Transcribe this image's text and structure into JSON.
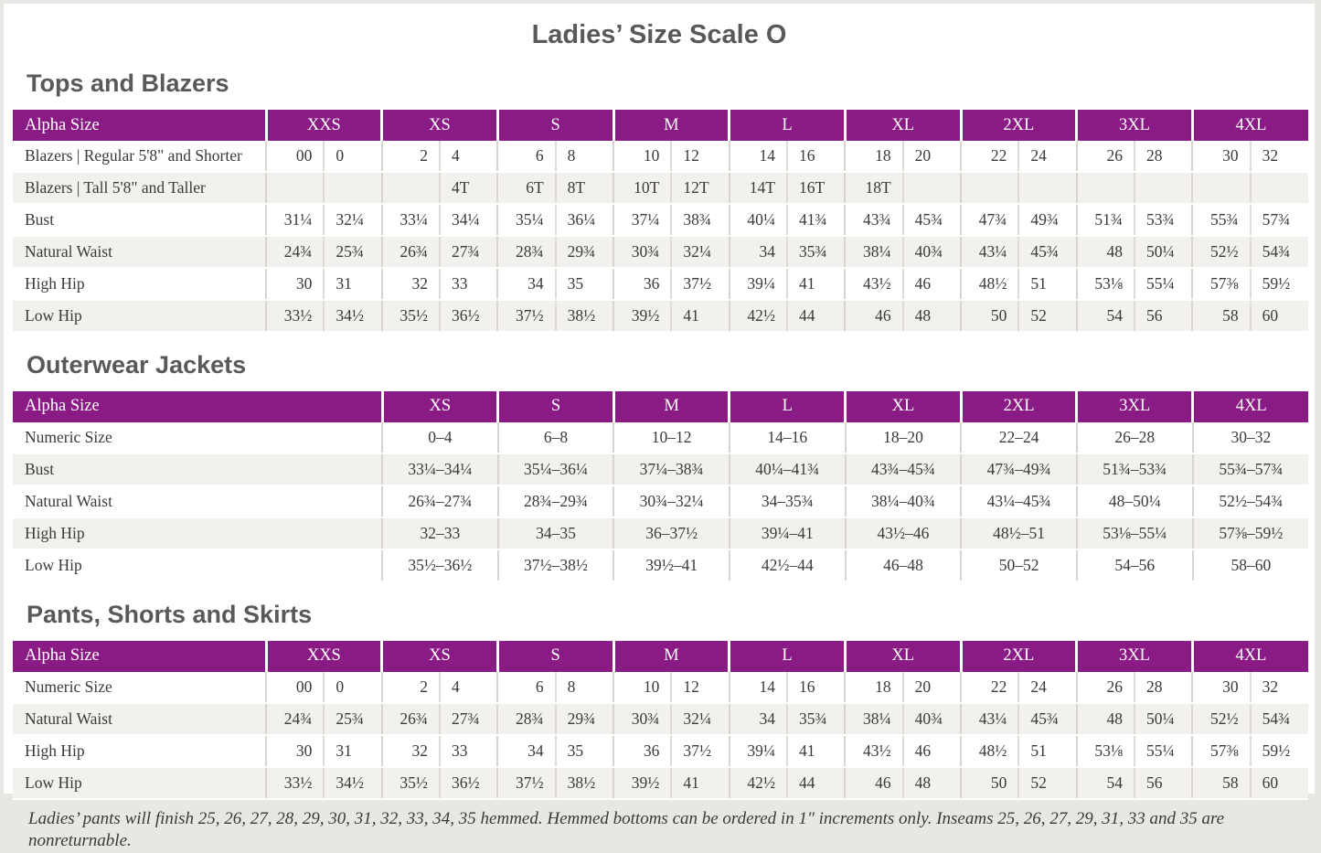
{
  "page": {
    "title": "Ladies’ Size Scale O",
    "footnote": "Ladies’ pants will finish 25, 26, 27, 28, 29, 30, 31, 32, 33, 34, 35 hemmed. Hemmed bottoms can be ordered in 1″ increments only. Inseams 25, 26, 27, 29, 31, 33 and 35 are nonreturnable."
  },
  "colors": {
    "header_purple": "#8A1B84",
    "row_shade": "#F2F1EE",
    "heading_gray": "#58595B",
    "body_text": "#3C3A38",
    "grid_line": "#D8D5D1",
    "page_background": "#E9E7E4"
  },
  "tables": [
    {
      "section_title": "Tops and Blazers",
      "header_label": "Alpha Size",
      "split_columns": true,
      "sizes": [
        "XXS",
        "XS",
        "S",
        "M",
        "L",
        "XL",
        "2XL",
        "3XL",
        "4XL"
      ],
      "rows": [
        {
          "label": "Blazers | Regular 5'8\" and Shorter",
          "values": [
            "00",
            "0",
            "2",
            "4",
            "6",
            "8",
            "10",
            "12",
            "14",
            "16",
            "18",
            "20",
            "22",
            "24",
            "26",
            "28",
            "30",
            "32"
          ]
        },
        {
          "label": "Blazers | Tall 5'8\" and Taller",
          "values": [
            "",
            "",
            "",
            "4T",
            "6T",
            "8T",
            "10T",
            "12T",
            "14T",
            "16T",
            "18T",
            "",
            "",
            "",
            "",
            "",
            "",
            ""
          ]
        },
        {
          "label": "Bust",
          "values": [
            "31¼",
            "32¼",
            "33¼",
            "34¼",
            "35¼",
            "36¼",
            "37¼",
            "38¾",
            "40¼",
            "41¾",
            "43¾",
            "45¾",
            "47¾",
            "49¾",
            "51¾",
            "53¾",
            "55¾",
            "57¾"
          ]
        },
        {
          "label": "Natural Waist",
          "values": [
            "24¾",
            "25¾",
            "26¾",
            "27¾",
            "28¾",
            "29¾",
            "30¾",
            "32¼",
            "34",
            "35¾",
            "38¼",
            "40¾",
            "43¼",
            "45¾",
            "48",
            "50¼",
            "52½",
            "54¾"
          ]
        },
        {
          "label": "High Hip",
          "values": [
            "30",
            "31",
            "32",
            "33",
            "34",
            "35",
            "36",
            "37½",
            "39¼",
            "41",
            "43½",
            "46",
            "48½",
            "51",
            "53⅛",
            "55¼",
            "57⅜",
            "59½"
          ]
        },
        {
          "label": "Low Hip",
          "values": [
            "33½",
            "34½",
            "35½",
            "36½",
            "37½",
            "38½",
            "39½",
            "41",
            "42½",
            "44",
            "46",
            "48",
            "50",
            "52",
            "54",
            "56",
            "58",
            "60"
          ]
        }
      ]
    },
    {
      "section_title": "Outerwear Jackets",
      "header_label": "Alpha Size",
      "split_columns": false,
      "sizes": [
        "XS",
        "S",
        "M",
        "L",
        "XL",
        "2XL",
        "3XL",
        "4XL"
      ],
      "rows": [
        {
          "label": "Numeric Size",
          "values": [
            "0–4",
            "6–8",
            "10–12",
            "14–16",
            "18–20",
            "22–24",
            "26–28",
            "30–32"
          ]
        },
        {
          "label": "Bust",
          "values": [
            "33¼–34¼",
            "35¼–36¼",
            "37¼–38¾",
            "40¼–41¾",
            "43¾–45¾",
            "47¾–49¾",
            "51¾–53¾",
            "55¾–57¾"
          ]
        },
        {
          "label": "Natural Waist",
          "values": [
            "26¾–27¾",
            "28¾–29¾",
            "30¾–32¼",
            "34–35¾",
            "38¼–40¾",
            "43¼–45¾",
            "48–50¼",
            "52½–54¾"
          ]
        },
        {
          "label": "High Hip",
          "values": [
            "32–33",
            "34–35",
            "36–37½",
            "39¼–41",
            "43½–46",
            "48½–51",
            "53⅛–55¼",
            "57⅜–59½"
          ]
        },
        {
          "label": "Low Hip",
          "values": [
            "35½–36½",
            "37½–38½",
            "39½–41",
            "42½–44",
            "46–48",
            "50–52",
            "54–56",
            "58–60"
          ]
        }
      ]
    },
    {
      "section_title": "Pants, Shorts and Skirts",
      "header_label": "Alpha Size",
      "split_columns": true,
      "sizes": [
        "XXS",
        "XS",
        "S",
        "M",
        "L",
        "XL",
        "2XL",
        "3XL",
        "4XL"
      ],
      "rows": [
        {
          "label": "Numeric Size",
          "values": [
            "00",
            "0",
            "2",
            "4",
            "6",
            "8",
            "10",
            "12",
            "14",
            "16",
            "18",
            "20",
            "22",
            "24",
            "26",
            "28",
            "30",
            "32"
          ]
        },
        {
          "label": "Natural Waist",
          "values": [
            "24¾",
            "25¾",
            "26¾",
            "27¾",
            "28¾",
            "29¾",
            "30¾",
            "32¼",
            "34",
            "35¾",
            "38¼",
            "40¾",
            "43¼",
            "45¾",
            "48",
            "50¼",
            "52½",
            "54¾"
          ]
        },
        {
          "label": "High Hip",
          "values": [
            "30",
            "31",
            "32",
            "33",
            "34",
            "35",
            "36",
            "37½",
            "39¼",
            "41",
            "43½",
            "46",
            "48½",
            "51",
            "53⅛",
            "55¼",
            "57⅜",
            "59½"
          ]
        },
        {
          "label": "Low Hip",
          "values": [
            "33½",
            "34½",
            "35½",
            "36½",
            "37½",
            "38½",
            "39½",
            "41",
            "42½",
            "44",
            "46",
            "48",
            "50",
            "52",
            "54",
            "56",
            "58",
            "60"
          ]
        }
      ]
    }
  ]
}
